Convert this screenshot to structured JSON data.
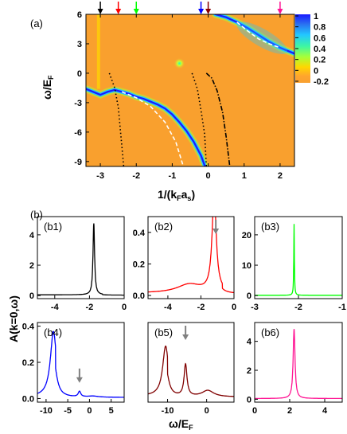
{
  "figure": {
    "panel_a_label": "(a)",
    "panel_b_label": "(b)",
    "a_ylabel": "ω/E",
    "a_ylabel_sub": "F",
    "a_xlabel": "1/(k",
    "a_xlabel_sub1": "F",
    "a_xlabel_mid": "a",
    "a_xlabel_sub2": "s",
    "a_xlabel_end": ")",
    "b_ylabel": "A(k=0,ω)",
    "b_xlabel": "ω/E",
    "b_xlabel_sub": "F",
    "colorbar": {
      "ticks": [
        "1",
        "0.8",
        "0.6",
        "0.4",
        "0.2",
        "0",
        "-0.2"
      ],
      "stops": [
        "#1a1aff",
        "#2a6ff0",
        "#22c8ff",
        "#3ff7a0",
        "#a6ff3a",
        "#ffd700",
        "#ffa52e",
        "#f8a030"
      ]
    },
    "arrow_colors": [
      "#000000",
      "#ff0000",
      "#00ff00",
      "#0000ff",
      "#8b0000",
      "#ff1493"
    ]
  },
  "chart_data": [
    {
      "id": "a",
      "type": "heatmap",
      "title": "",
      "xlabel": "1/(kFas)",
      "ylabel": "ω/EF",
      "xlim": [
        -3.4,
        2.4
      ],
      "ylim": [
        -9.5,
        6
      ],
      "xticks": [
        -3,
        -2,
        -1,
        0,
        1,
        2
      ],
      "yticks": [
        6,
        3,
        0,
        -3,
        -6,
        -9
      ],
      "colorbar_range": [
        -0.2,
        1
      ],
      "arrows_at_x": [
        -3,
        -2.5,
        -2,
        -0.2,
        0,
        2
      ],
      "bright_branches": [
        {
          "name": "",
          "x": [
            -3.4,
            -3.2,
            -3.0,
            -2.8,
            -2.6,
            -2.4,
            -2.2,
            -2.0,
            -1.8,
            -1.6,
            -1.4,
            -1.2,
            -1.0,
            -0.8,
            -0.6,
            -0.4,
            -0.2,
            -0.1
          ],
          "y": [
            -1.6,
            -1.9,
            -2.2,
            -1.9,
            -1.7,
            -1.9,
            -2.1,
            -2.4,
            -2.6,
            -2.9,
            -3.2,
            -3.6,
            -4.2,
            -5.0,
            -5.9,
            -7.0,
            -8.4,
            -9.4
          ]
        },
        {
          "name": "",
          "x": [
            0.2,
            0.5,
            0.8,
            1.1,
            1.4,
            1.7,
            2.0,
            2.4
          ],
          "y": [
            6.0,
            5.7,
            5.2,
            4.6,
            3.9,
            3.2,
            2.6,
            2.0
          ]
        }
      ],
      "dashed_white": [
        {
          "x": [
            -2.4,
            -2.0,
            -1.6,
            -1.2,
            -0.9,
            -0.7
          ],
          "y": [
            -1.9,
            -2.5,
            -3.4,
            -5.0,
            -7.0,
            -9.4
          ]
        },
        {
          "x": [
            0.8,
            1.1,
            1.4,
            1.7,
            2.0
          ],
          "y": [
            5.2,
            4.3,
            3.5,
            3.0,
            2.6
          ]
        }
      ],
      "dotted_black": [
        {
          "x": [
            -2.75,
            -2.6,
            -2.5,
            -2.45,
            -2.4,
            -2.35
          ],
          "y": [
            0,
            -1.5,
            -3.5,
            -5.5,
            -7.5,
            -9.5
          ]
        },
        {
          "x": [
            -0.45,
            -0.3,
            -0.2,
            -0.1,
            -0.05
          ],
          "y": [
            0,
            -1.6,
            -3.8,
            -6.2,
            -9.5
          ]
        }
      ],
      "dashdot_black": [
        {
          "x": [
            -0.05,
            0.1,
            0.25,
            0.4,
            0.5,
            0.6
          ],
          "y": [
            0,
            -0.5,
            -1.8,
            -4.0,
            -6.5,
            -9.5
          ]
        }
      ]
    },
    {
      "id": "b1",
      "type": "line",
      "label": "(b1)",
      "color": "#000000",
      "xlim": [
        -5,
        0
      ],
      "ylim": [
        -0.2,
        5.2
      ],
      "xticks": [
        -4,
        -2,
        0
      ],
      "yticks": [
        0,
        2,
        4
      ],
      "peaks": [
        {
          "x0": -1.75,
          "h": 4.7,
          "w": 0.055
        }
      ],
      "baseline": 0.05,
      "tail_side": "left",
      "arrow_x": null
    },
    {
      "id": "b2",
      "type": "line",
      "label": "(b2)",
      "color": "#ff0000",
      "xlim": [
        -5.2,
        0
      ],
      "ylim": [
        -0.02,
        0.5
      ],
      "xticks": [
        -4,
        -2,
        0
      ],
      "yticks": [
        0.0,
        0.2,
        0.4
      ],
      "peaks": [
        {
          "x0": -1.2,
          "h": 0.62,
          "w": 0.15
        },
        {
          "x0": -2.7,
          "h": 0.055,
          "w": 0.9
        }
      ],
      "baseline": 0.015,
      "tail_side": "left",
      "arrow_x": -1.1
    },
    {
      "id": "b3",
      "type": "line",
      "label": "(b3)",
      "color": "#00ff00",
      "xlim": [
        -3,
        -1
      ],
      "ylim": [
        -1,
        26
      ],
      "xticks": [
        -3,
        -2,
        -1
      ],
      "yticks": [
        0,
        10,
        20
      ],
      "peaks": [
        {
          "x0": -2.1,
          "h": 23.5,
          "w": 0.008
        }
      ],
      "baseline": 0.1,
      "tail_side": "none",
      "arrow_x": null
    },
    {
      "id": "b4",
      "type": "line",
      "label": "(b4)",
      "color": "#0000ff",
      "xlim": [
        -12,
        8
      ],
      "ylim": [
        -0.02,
        0.42
      ],
      "xticks": [
        -10,
        -5,
        0,
        5
      ],
      "yticks": [
        0.0,
        0.2,
        0.4
      ],
      "peaks": [
        {
          "x0": -8.3,
          "h": 0.36,
          "w": 0.85
        },
        {
          "x0": -2.3,
          "h": 0.05,
          "w": 0.35
        },
        {
          "x0": 0.8,
          "h": 0.01,
          "w": 1.5
        }
      ],
      "baseline": 0.01,
      "tail_side": "left",
      "arrow_x": -2.3
    },
    {
      "id": "b5",
      "type": "line",
      "label": "(b5)",
      "color": "#800000",
      "xlim": [
        -15,
        7
      ],
      "ylim": [
        -0.01,
        0.2
      ],
      "xticks": [
        -10,
        0
      ],
      "yticks": [],
      "peaks": [
        {
          "x0": -10.5,
          "h": 0.13,
          "w": 0.9
        },
        {
          "x0": -5.4,
          "h": 0.14,
          "w": 0.45
        },
        {
          "x0": 0.3,
          "h": 0.028,
          "w": 1.8
        }
      ],
      "baseline": 0.006,
      "tail_side": "left",
      "arrow_x": -5.4
    },
    {
      "id": "b6",
      "type": "line",
      "label": "(b6)",
      "color": "#ff1493",
      "xlim": [
        0,
        5
      ],
      "ylim": [
        -0.2,
        5.3
      ],
      "xticks": [
        0,
        2,
        4
      ],
      "yticks": [
        0,
        2,
        4
      ],
      "peaks": [
        {
          "x0": 2.25,
          "h": 4.8,
          "w": 0.065
        }
      ],
      "baseline": 0.05,
      "tail_side": "right",
      "arrow_x": null
    }
  ]
}
